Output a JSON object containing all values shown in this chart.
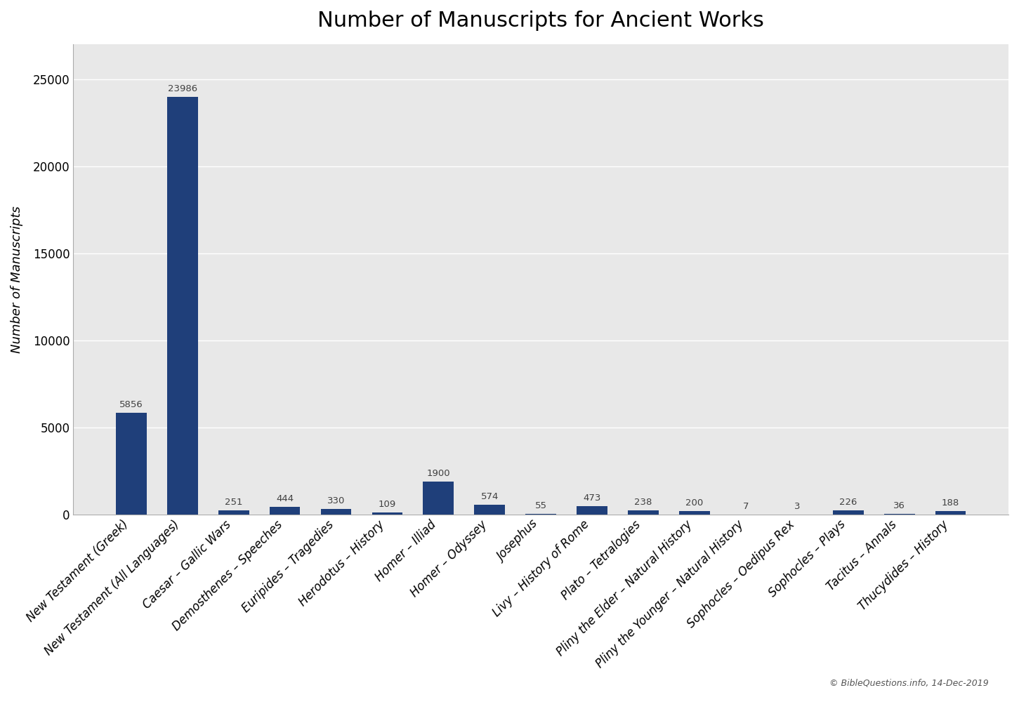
{
  "title": "Number of Manuscripts for Ancient Works",
  "ylabel": "Number of Manuscripts",
  "categories": [
    "New Testament (Greek)",
    "New Testament (All Languages)",
    "Caesar – Gallic Wars",
    "Demosthenes – Speeches",
    "Euripides – Tragedies",
    "Herodotus – History",
    "Homer – Illiad",
    "Homer – Odyssey",
    "Josephus",
    "Livy – History of Rome",
    "Plato – Tetralogies",
    "Pliny the Elder – Natural History",
    "Pliny the Younger – Natural History",
    "Sophocles – Oedipus Rex",
    "Sophocles – Plays",
    "Tacitus – Annals",
    "Thucydides – History"
  ],
  "values": [
    5856,
    23986,
    251,
    444,
    330,
    109,
    1900,
    574,
    55,
    473,
    238,
    200,
    7,
    3,
    226,
    36,
    188
  ],
  "bar_color": "#1f3f7a",
  "plot_bg_color": "#e8e8e8",
  "fig_bg_color": "#ffffff",
  "grid_color": "#ffffff",
  "ylim": [
    0,
    27000
  ],
  "yticks": [
    0,
    5000,
    10000,
    15000,
    20000,
    25000
  ],
  "annotation_color": "#404040",
  "annotation_fontsize": 9.5,
  "title_fontsize": 22,
  "ylabel_fontsize": 13,
  "tick_fontsize": 12,
  "xtick_fontsize": 12,
  "footer": "© BibleQuestions.info, 14-Dec-2019"
}
